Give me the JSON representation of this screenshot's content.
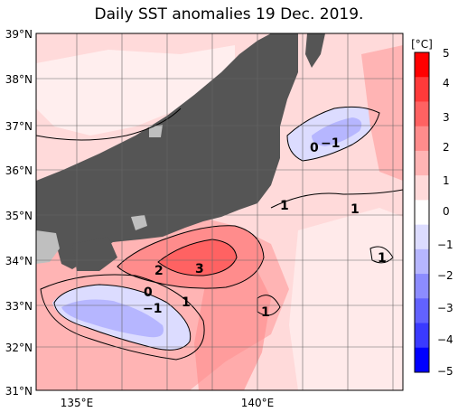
{
  "title": "Daily SST anomalies 19 Dec. 2019.",
  "latitude_labels": [
    "39°N",
    "38°N",
    "37°N",
    "36°N",
    "35°N",
    "34°N",
    "33°N",
    "32°N",
    "31°N"
  ],
  "longitude_labels": [
    "135°E",
    "140°E"
  ],
  "colorbar": {
    "unit": "[°C]",
    "tick_labels": [
      "5",
      "4",
      "3",
      "2",
      "1",
      "0",
      "−1",
      "−2",
      "−3",
      "−4",
      "−5"
    ],
    "colors": [
      "#ff0000",
      "#ff3a3a",
      "#ff6262",
      "#ff8c8c",
      "#ffb4b4",
      "#ffdada",
      "#ffffff",
      "#dcdcff",
      "#b6b6ff",
      "#8c8cff",
      "#6262ff",
      "#3a3aff",
      "#0000ff"
    ]
  },
  "contour_labels": [
    "1",
    "1",
    "1",
    "2",
    "3",
    "0",
    "−1",
    "1",
    "1",
    "0",
    "−1"
  ],
  "colors": {
    "land": "#555555",
    "land_patch": "#bfbfbf",
    "background": "#ffffff"
  }
}
